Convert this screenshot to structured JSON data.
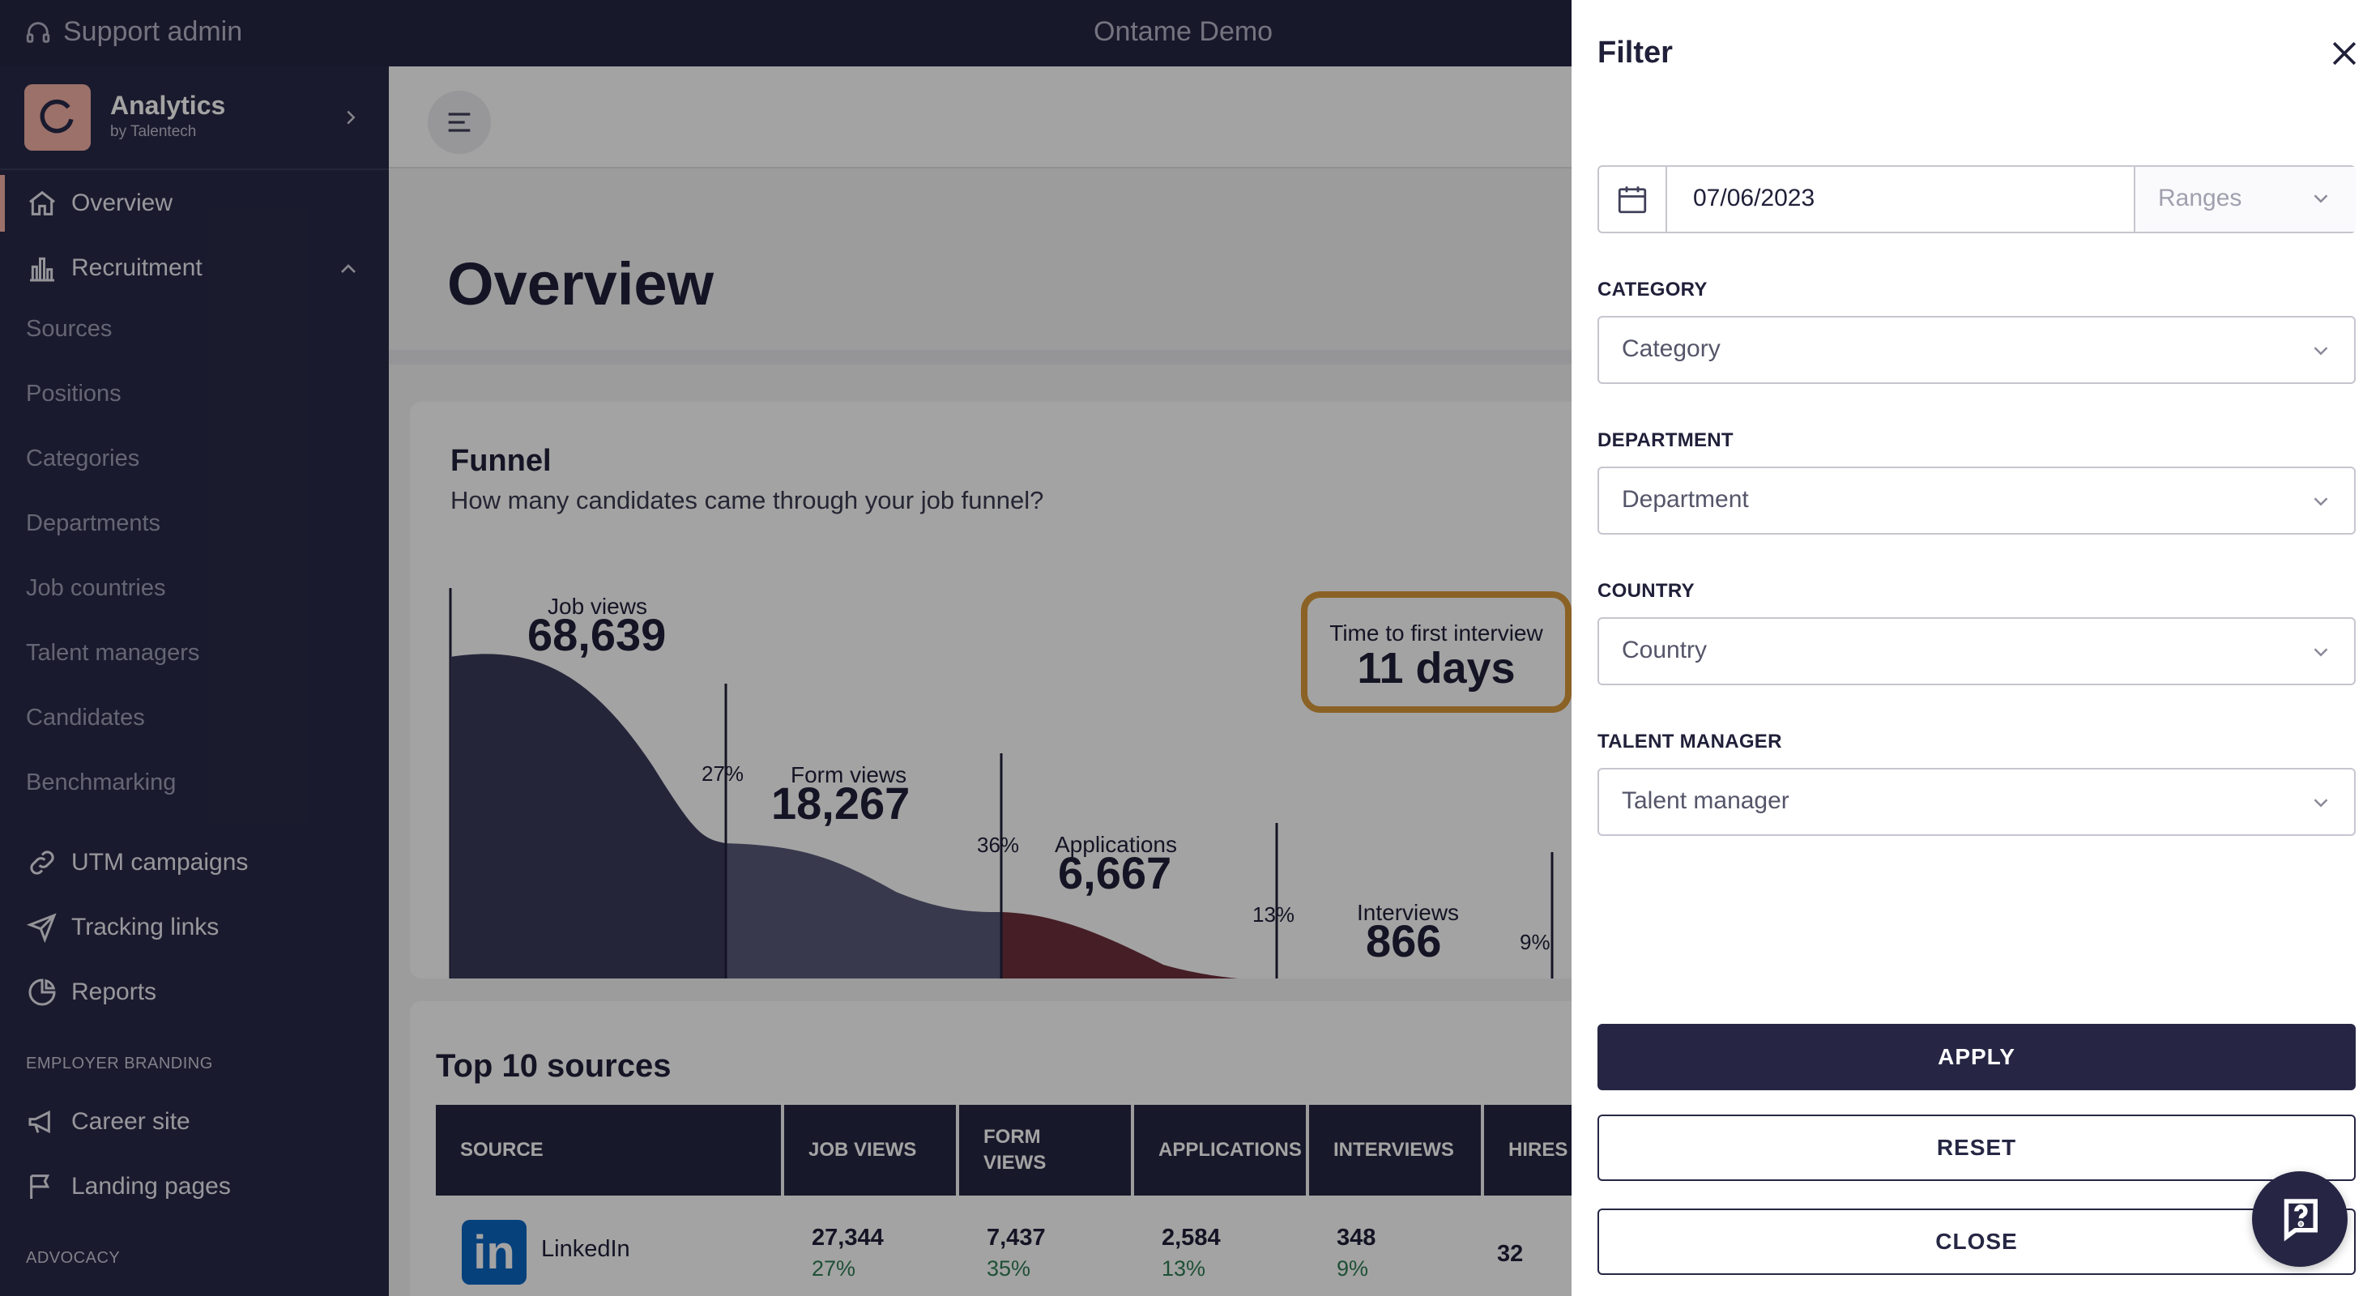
{
  "topbar": {
    "support_label": "Support admin",
    "workspace": "Ontame Demo"
  },
  "brand": {
    "name": "Analytics",
    "byline": "by Talentech"
  },
  "sidebar": {
    "overview": "Overview",
    "recruitment": "Recruitment",
    "recruitment_items": [
      "Sources",
      "Positions",
      "Categories",
      "Departments",
      "Job countries",
      "Talent managers",
      "Candidates",
      "Benchmarking"
    ],
    "utm": "UTM campaigns",
    "tracking": "Tracking links",
    "reports": "Reports",
    "employer_branding_label": "EMPLOYER BRANDING",
    "career_site": "Career site",
    "landing_pages": "Landing pages",
    "advocacy_label": "ADVOCACY"
  },
  "main": {
    "title": "Overview",
    "funnel": {
      "title": "Funnel",
      "subtitle": "How many candidates came through your job funnel?",
      "time_to_first_interview_label": "Time to first interview",
      "time_to_first_interview_value": "11 days",
      "stages": [
        {
          "label": "Job views",
          "value": "68,639",
          "color": "#3a3a5c"
        },
        {
          "label": "Form views",
          "value": "18,267",
          "color": "#5a5a7a"
        },
        {
          "label": "Applications",
          "value": "6,667",
          "color": "#6e2f3c"
        },
        {
          "label": "Interviews",
          "value": "866",
          "color": "#c98a2e"
        }
      ],
      "conversions": [
        "27%",
        "36%",
        "13%",
        "9%"
      ],
      "last_stage_color": "#4b8aa6"
    },
    "sources": {
      "title": "Top 10 sources",
      "columns": [
        "SOURCE",
        "JOB VIEWS",
        "FORM VIEWS",
        "APPLICATIONS",
        "INTERVIEWS",
        "HIRES"
      ],
      "rows": [
        {
          "logo": "in",
          "name": "LinkedIn",
          "job_views": "27,344",
          "job_views_pct": "27%",
          "form_views": "7,437",
          "form_views_pct": "35%",
          "applications": "2,584",
          "applications_pct": "13%",
          "interviews": "348",
          "interviews_pct": "9%",
          "hires": "32"
        }
      ]
    }
  },
  "filter": {
    "title": "Filter",
    "date": "07/06/2023",
    "ranges_placeholder": "Ranges",
    "category_label": "CATEGORY",
    "category_placeholder": "Category",
    "department_label": "DEPARTMENT",
    "department_placeholder": "Department",
    "country_label": "COUNTRY",
    "country_placeholder": "Country",
    "talent_manager_label": "TALENT MANAGER",
    "talent_manager_placeholder": "Talent manager",
    "apply": "APPLY",
    "reset": "RESET",
    "close": "CLOSE"
  }
}
